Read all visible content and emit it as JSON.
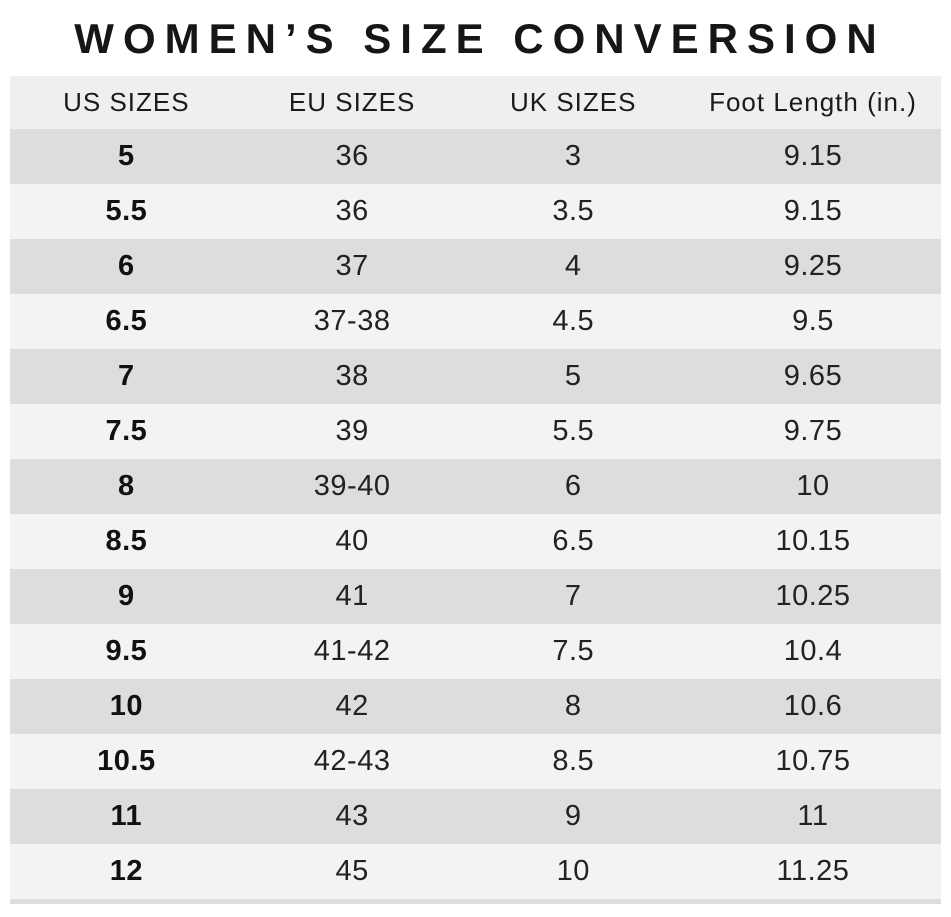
{
  "title": "WOMEN’S SIZE CONVERSION",
  "colors": {
    "background": "#ffffff",
    "header_bg": "#f0efed",
    "row_dark": "#dcddde",
    "row_light": "#f3f3f1",
    "text": "#1b1b1b"
  },
  "chart_data": {
    "type": "table",
    "title": "WOMEN’S SIZE CONVERSION",
    "headers": [
      "US SIZES",
      "EU SIZES",
      "UK SIZES",
      "Foot Length (in.)"
    ],
    "col_keys": [
      "us-size",
      "eu-size",
      "uk-size",
      "foot-length"
    ],
    "rows": [
      [
        "5",
        "36",
        "3",
        "9.15"
      ],
      [
        "5.5",
        "36",
        "3.5",
        "9.15"
      ],
      [
        "6",
        "37",
        "4",
        "9.25"
      ],
      [
        "6.5",
        "37-38",
        "4.5",
        "9.5"
      ],
      [
        "7",
        "38",
        "5",
        "9.65"
      ],
      [
        "7.5",
        "39",
        "5.5",
        "9.75"
      ],
      [
        "8",
        "39-40",
        "6",
        "10"
      ],
      [
        "8.5",
        "40",
        "6.5",
        "10.15"
      ],
      [
        "9",
        "41",
        "7",
        "10.25"
      ],
      [
        "9.5",
        "41-42",
        "7.5",
        "10.4"
      ],
      [
        "10",
        "42",
        "8",
        "10.6"
      ],
      [
        "10.5",
        "42-43",
        "8.5",
        "10.75"
      ],
      [
        "11",
        "43",
        "9",
        "11"
      ],
      [
        "12",
        "45",
        "10",
        "11.25"
      ]
    ]
  }
}
